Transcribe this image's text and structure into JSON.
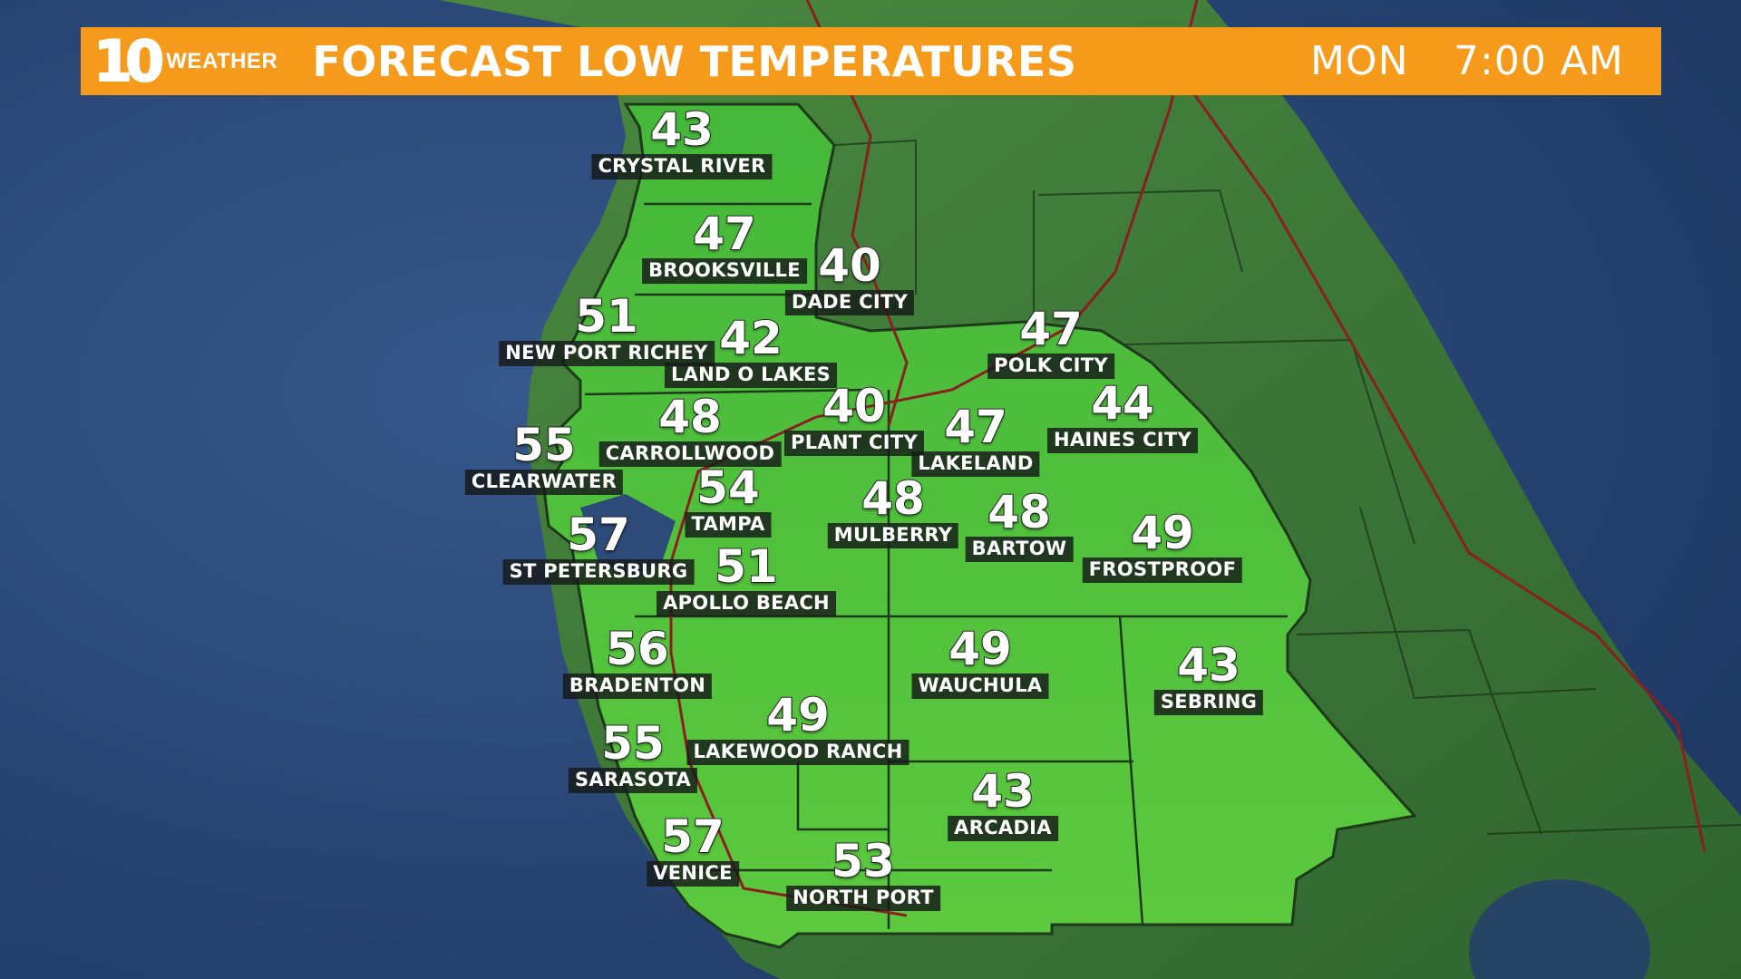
{
  "header": {
    "logo_number": "10",
    "logo_word": "WEATHER",
    "title": "FORECAST LOW TEMPERATURES",
    "day": "MON",
    "time": "7:00 AM"
  },
  "colors": {
    "banner": "#f59a1b",
    "ocean": "#2f4d7e",
    "land": "#3f7a3a",
    "forecast_area": "#4fbf3a",
    "highways": "#8a1f1f",
    "label_background": "#1a1e1c"
  },
  "cities": [
    {
      "name": "CRYSTAL RIVER",
      "temp": "43"
    },
    {
      "name": "BROOKSVILLE",
      "temp": "47"
    },
    {
      "name": "DADE CITY",
      "temp": "40"
    },
    {
      "name": "NEW PORT RICHEY",
      "temp": "51"
    },
    {
      "name": "LAND O LAKES",
      "temp": "42"
    },
    {
      "name": "POLK CITY",
      "temp": "47"
    },
    {
      "name": "CARROLLWOOD",
      "temp": "48"
    },
    {
      "name": "PLANT CITY",
      "temp": "40"
    },
    {
      "name": "LAKELAND",
      "temp": "47"
    },
    {
      "name": "HAINES CITY",
      "temp": "44"
    },
    {
      "name": "CLEARWATER",
      "temp": "55"
    },
    {
      "name": "TAMPA",
      "temp": "54"
    },
    {
      "name": "MULBERRY",
      "temp": "48"
    },
    {
      "name": "BARTOW",
      "temp": "48"
    },
    {
      "name": "FROSTPROOF",
      "temp": "49"
    },
    {
      "name": "ST PETERSBURG",
      "temp": "57"
    },
    {
      "name": "APOLLO BEACH",
      "temp": "51"
    },
    {
      "name": "BRADENTON",
      "temp": "56"
    },
    {
      "name": "WAUCHULA",
      "temp": "49"
    },
    {
      "name": "SEBRING",
      "temp": "43"
    },
    {
      "name": "LAKEWOOD RANCH",
      "temp": "49"
    },
    {
      "name": "SARASOTA",
      "temp": "55"
    },
    {
      "name": "ARCADIA",
      "temp": "43"
    },
    {
      "name": "VENICE",
      "temp": "57"
    },
    {
      "name": "NORTH PORT",
      "temp": "53"
    }
  ]
}
